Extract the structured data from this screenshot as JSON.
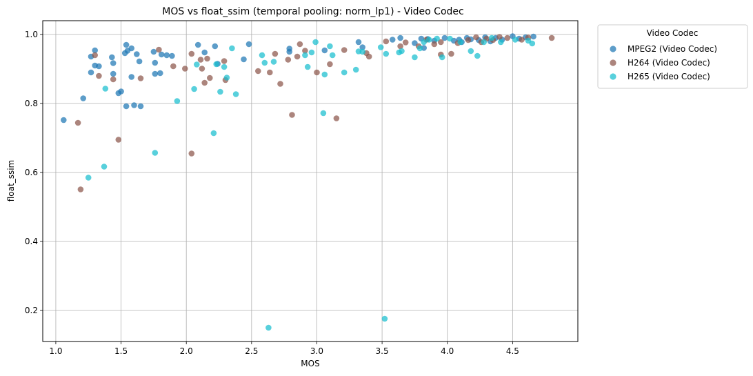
{
  "chart_data": {
    "type": "scatter",
    "title": "MOS vs float_ssim (temporal pooling: norm_lp1) - Video Codec",
    "xlabel": "MOS",
    "ylabel": "float_ssim",
    "xlim": [
      0.9,
      5.0
    ],
    "ylim": [
      0.11,
      1.04
    ],
    "xticks": [
      1.0,
      1.5,
      2.0,
      2.5,
      3.0,
      3.5,
      4.0,
      4.5
    ],
    "xtick_labels": [
      "1.0",
      "1.5",
      "2.0",
      "2.5",
      "3.0",
      "3.5",
      "4.0",
      "4.5"
    ],
    "yticks": [
      0.2,
      0.4,
      0.6,
      0.8,
      1.0
    ],
    "ytick_labels": [
      "0.2",
      "0.4",
      "0.6",
      "0.8",
      "1.0"
    ],
    "grid": true,
    "legend": {
      "title": "Video Codec",
      "placement": "outside-top-right"
    },
    "series": [
      {
        "name": "MPEG2 (Video Codec)",
        "color": "#1f77b4",
        "points": [
          [
            1.06,
            0.752
          ],
          [
            1.21,
            0.815
          ],
          [
            1.27,
            0.936
          ],
          [
            1.3,
            0.954
          ],
          [
            1.3,
            0.91
          ],
          [
            1.33,
            0.908
          ],
          [
            1.27,
            0.89
          ],
          [
            1.43,
            0.934
          ],
          [
            1.44,
            0.917
          ],
          [
            1.44,
            0.886
          ],
          [
            1.48,
            0.83
          ],
          [
            1.5,
            0.835
          ],
          [
            1.53,
            0.946
          ],
          [
            1.54,
            0.97
          ],
          [
            1.55,
            0.953
          ],
          [
            1.54,
            0.792
          ],
          [
            1.58,
            0.96
          ],
          [
            1.58,
            0.877
          ],
          [
            1.6,
            0.795
          ],
          [
            1.62,
            0.943
          ],
          [
            1.64,
            0.922
          ],
          [
            1.65,
            0.792
          ],
          [
            1.75,
            0.95
          ],
          [
            1.76,
            0.918
          ],
          [
            1.76,
            0.886
          ],
          [
            1.8,
            0.888
          ],
          [
            1.81,
            0.942
          ],
          [
            1.85,
            0.94
          ],
          [
            1.89,
            0.938
          ],
          [
            2.09,
            0.97
          ],
          [
            2.14,
            0.948
          ],
          [
            2.22,
            0.966
          ],
          [
            2.24,
            0.915
          ],
          [
            2.44,
            0.928
          ],
          [
            2.48,
            0.972
          ],
          [
            2.79,
            0.959
          ],
          [
            2.79,
            0.95
          ],
          [
            3.06,
            0.954
          ],
          [
            3.32,
            0.978
          ],
          [
            3.35,
            0.963
          ],
          [
            3.58,
            0.985
          ],
          [
            3.64,
            0.99
          ],
          [
            3.75,
            0.975
          ],
          [
            3.8,
            0.988
          ],
          [
            3.82,
            0.961
          ],
          [
            3.85,
            0.987
          ],
          [
            3.9,
            0.982
          ],
          [
            3.98,
            0.99
          ],
          [
            4.05,
            0.982
          ],
          [
            4.09,
            0.985
          ],
          [
            4.11,
            0.978
          ],
          [
            4.15,
            0.99
          ],
          [
            4.18,
            0.986
          ],
          [
            4.24,
            0.984
          ],
          [
            4.29,
            0.992
          ],
          [
            4.33,
            0.98
          ],
          [
            4.37,
            0.99
          ],
          [
            4.42,
            0.985
          ],
          [
            4.5,
            0.995
          ],
          [
            4.55,
            0.988
          ],
          [
            4.6,
            0.992
          ],
          [
            4.66,
            0.994
          ]
        ]
      },
      {
        "name": "H264 (Video Codec)",
        "color": "#8c564b",
        "points": [
          [
            1.17,
            0.744
          ],
          [
            1.19,
            0.551
          ],
          [
            1.3,
            0.94
          ],
          [
            1.33,
            0.88
          ],
          [
            1.44,
            0.87
          ],
          [
            1.48,
            0.695
          ],
          [
            1.65,
            0.873
          ],
          [
            1.79,
            0.956
          ],
          [
            1.9,
            0.908
          ],
          [
            1.99,
            0.901
          ],
          [
            2.04,
            0.944
          ],
          [
            2.04,
            0.655
          ],
          [
            2.11,
            0.927
          ],
          [
            2.12,
            0.901
          ],
          [
            2.14,
            0.86
          ],
          [
            2.16,
            0.93
          ],
          [
            2.18,
            0.874
          ],
          [
            2.29,
            0.923
          ],
          [
            2.3,
            0.868
          ],
          [
            2.55,
            0.894
          ],
          [
            2.64,
            0.89
          ],
          [
            2.68,
            0.944
          ],
          [
            2.72,
            0.857
          ],
          [
            2.78,
            0.927
          ],
          [
            2.81,
            0.767
          ],
          [
            2.85,
            0.936
          ],
          [
            2.87,
            0.972
          ],
          [
            2.91,
            0.953
          ],
          [
            3.0,
            0.89
          ],
          [
            3.1,
            0.914
          ],
          [
            3.15,
            0.757
          ],
          [
            3.21,
            0.955
          ],
          [
            3.38,
            0.946
          ],
          [
            3.4,
            0.936
          ],
          [
            3.53,
            0.98
          ],
          [
            3.64,
            0.966
          ],
          [
            3.68,
            0.977
          ],
          [
            3.78,
            0.966
          ],
          [
            3.84,
            0.985
          ],
          [
            3.9,
            0.972
          ],
          [
            3.95,
            0.942
          ],
          [
            3.95,
            0.978
          ],
          [
            4.03,
            0.944
          ],
          [
            4.08,
            0.975
          ],
          [
            4.16,
            0.984
          ],
          [
            4.22,
            0.992
          ],
          [
            4.26,
            0.978
          ],
          [
            4.3,
            0.988
          ],
          [
            4.35,
            0.984
          ],
          [
            4.4,
            0.993
          ],
          [
            4.46,
            0.99
          ],
          [
            4.57,
            0.985
          ],
          [
            4.62,
            0.991
          ],
          [
            4.8,
            0.99
          ]
        ]
      },
      {
        "name": "H265 (Video Codec)",
        "color": "#17becf",
        "points": [
          [
            1.25,
            0.585
          ],
          [
            1.37,
            0.617
          ],
          [
            1.38,
            0.843
          ],
          [
            1.76,
            0.657
          ],
          [
            1.93,
            0.807
          ],
          [
            2.06,
            0.842
          ],
          [
            2.08,
            0.913
          ],
          [
            2.21,
            0.714
          ],
          [
            2.23,
            0.914
          ],
          [
            2.26,
            0.834
          ],
          [
            2.29,
            0.906
          ],
          [
            2.31,
            0.875
          ],
          [
            2.35,
            0.96
          ],
          [
            2.38,
            0.827
          ],
          [
            2.58,
            0.94
          ],
          [
            2.6,
            0.918
          ],
          [
            2.63,
            0.15
          ],
          [
            2.67,
            0.921
          ],
          [
            2.91,
            0.94
          ],
          [
            2.93,
            0.906
          ],
          [
            2.96,
            0.948
          ],
          [
            2.99,
            0.978
          ],
          [
            3.05,
            0.772
          ],
          [
            3.06,
            0.884
          ],
          [
            3.1,
            0.966
          ],
          [
            3.12,
            0.94
          ],
          [
            3.21,
            0.89
          ],
          [
            3.3,
            0.898
          ],
          [
            3.32,
            0.951
          ],
          [
            3.35,
            0.95
          ],
          [
            3.49,
            0.963
          ],
          [
            3.52,
            0.176
          ],
          [
            3.53,
            0.944
          ],
          [
            3.63,
            0.948
          ],
          [
            3.65,
            0.952
          ],
          [
            3.75,
            0.934
          ],
          [
            3.79,
            0.96
          ],
          [
            3.82,
            0.978
          ],
          [
            3.86,
            0.985
          ],
          [
            3.92,
            0.988
          ],
          [
            3.96,
            0.934
          ],
          [
            4.02,
            0.988
          ],
          [
            4.1,
            0.978
          ],
          [
            4.18,
            0.952
          ],
          [
            4.23,
            0.938
          ],
          [
            4.28,
            0.978
          ],
          [
            4.34,
            0.99
          ],
          [
            4.41,
            0.978
          ],
          [
            4.52,
            0.985
          ],
          [
            4.62,
            0.982
          ],
          [
            4.65,
            0.974
          ]
        ]
      }
    ]
  }
}
